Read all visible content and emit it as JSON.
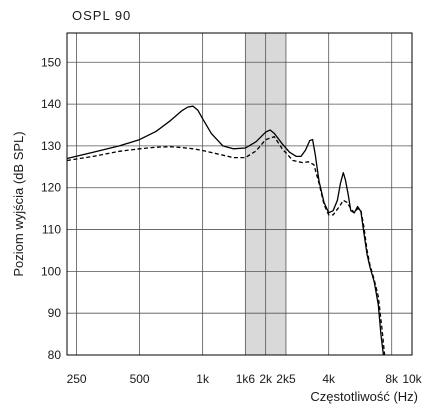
{
  "chart_data": {
    "type": "line",
    "title": "OSPL 90",
    "xlabel": "Częstotliwość (Hz)",
    "ylabel": "Poziom wyjścia (dB SPL)",
    "x_scale": "log",
    "xlim": [
      225,
      10000
    ],
    "ylim": [
      80,
      157
    ],
    "grid": true,
    "legend": "none",
    "x_ticks": [
      {
        "value": 250,
        "label": "250"
      },
      {
        "value": 500,
        "label": "500"
      },
      {
        "value": 1000,
        "label": "1k"
      },
      {
        "value": 1600,
        "label": "1k6"
      },
      {
        "value": 2000,
        "label": "2k"
      },
      {
        "value": 2500,
        "label": "2k5"
      },
      {
        "value": 4000,
        "label": "4k"
      },
      {
        "value": 8000,
        "label": "8k"
      },
      {
        "value": 10000,
        "label": "10k"
      }
    ],
    "y_ticks": [
      {
        "value": 80,
        "label": "80"
      },
      {
        "value": 90,
        "label": "90"
      },
      {
        "value": 100,
        "label": "100"
      },
      {
        "value": 110,
        "label": "110"
      },
      {
        "value": 120,
        "label": "120"
      },
      {
        "value": 130,
        "label": "130"
      },
      {
        "value": 140,
        "label": "140"
      },
      {
        "value": 150,
        "label": "150"
      }
    ],
    "shaded_band": {
      "x_from": 1600,
      "x_to": 2500,
      "color": "#d9d9d9"
    },
    "series": [
      {
        "style": "solid",
        "color": "#000000",
        "x": [
          225,
          300,
          400,
          500,
          600,
          700,
          800,
          850,
          900,
          950,
          1000,
          1100,
          1250,
          1400,
          1600,
          1800,
          2000,
          2100,
          2200,
          2400,
          2600,
          2800,
          2950,
          3100,
          3250,
          3350,
          3450,
          3600,
          3800,
          4000,
          4200,
          4400,
          4550,
          4700,
          4800,
          4950,
          5100,
          5300,
          5500,
          5700,
          5900,
          6100,
          6300,
          6600,
          6900,
          7100,
          7300
        ],
        "y": [
          127,
          128.5,
          130,
          131.5,
          133.5,
          136,
          138.5,
          139.3,
          139.5,
          138.5,
          136.5,
          133,
          130,
          129.3,
          129.5,
          131,
          133.3,
          133.8,
          133,
          130.5,
          128.5,
          127.5,
          127.5,
          129,
          131.3,
          131.5,
          128,
          121.5,
          116.5,
          114,
          114.5,
          117,
          121,
          123.6,
          122,
          118.5,
          114.5,
          114,
          115.5,
          114.3,
          109,
          104,
          101,
          97.5,
          92,
          85,
          80
        ]
      },
      {
        "style": "dashed",
        "color": "#000000",
        "x": [
          225,
          300,
          400,
          500,
          600,
          700,
          800,
          900,
          1000,
          1200,
          1400,
          1600,
          1800,
          2000,
          2200,
          2400,
          2700,
          3000,
          3200,
          3400,
          3600,
          3800,
          4000,
          4200,
          4500,
          4700,
          4900,
          5100,
          5300,
          5500,
          5700,
          5900,
          6100,
          6300,
          6600,
          6900,
          7200,
          7400
        ],
        "y": [
          126.5,
          127.5,
          128.7,
          129.3,
          129.7,
          129.8,
          129.6,
          129.3,
          128.9,
          128,
          127.2,
          127.2,
          128.8,
          131.5,
          132.2,
          129.3,
          126.5,
          126,
          126.2,
          125.5,
          121,
          116,
          113.5,
          113.5,
          115.5,
          117,
          116.5,
          115,
          114,
          115,
          114.6,
          110.5,
          105,
          101.5,
          98,
          94,
          86,
          80
        ]
      }
    ]
  }
}
